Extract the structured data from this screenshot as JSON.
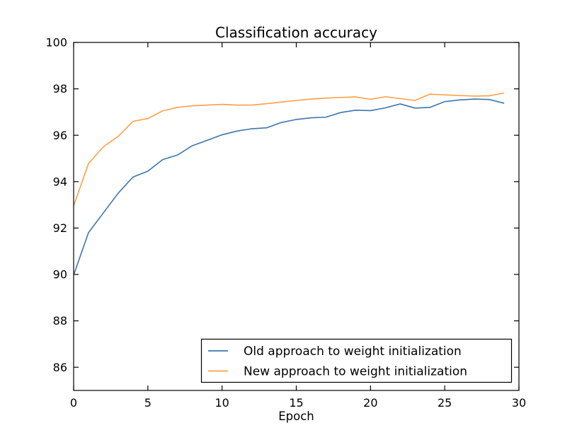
{
  "chart_data": {
    "type": "line",
    "title": "Classification accuracy",
    "xlabel": "Epoch",
    "ylabel": "",
    "xlim": [
      0,
      30
    ],
    "ylim": [
      85,
      100
    ],
    "xticks": [
      0,
      5,
      10,
      15,
      20,
      25,
      30
    ],
    "yticks": [
      86,
      88,
      90,
      92,
      94,
      96,
      98,
      100
    ],
    "grid": false,
    "legend_position": "lower right",
    "axis_color": "#000000",
    "background_color": "#ffffff",
    "x": [
      0,
      1,
      2,
      3,
      4,
      5,
      6,
      7,
      8,
      9,
      10,
      11,
      12,
      13,
      14,
      15,
      16,
      17,
      18,
      19,
      20,
      21,
      22,
      23,
      24,
      25,
      26,
      27,
      28,
      29
    ],
    "series": [
      {
        "name": "Old approach to weight initialization",
        "color": "#3b76b0",
        "values": [
          89.97,
          91.8,
          92.65,
          93.5,
          94.2,
          94.45,
          94.95,
          95.15,
          95.55,
          95.78,
          96.02,
          96.18,
          96.28,
          96.32,
          96.55,
          96.68,
          96.75,
          96.78,
          96.98,
          97.08,
          97.06,
          97.18,
          97.35,
          97.17,
          97.2,
          97.45,
          97.52,
          97.56,
          97.54,
          97.38
        ]
      },
      {
        "name": "New approach to weight initialization",
        "color": "#ff9f45",
        "values": [
          92.95,
          94.78,
          95.5,
          95.95,
          96.6,
          96.72,
          97.05,
          97.2,
          97.27,
          97.3,
          97.33,
          97.3,
          97.3,
          97.36,
          97.43,
          97.5,
          97.56,
          97.6,
          97.63,
          97.65,
          97.55,
          97.66,
          97.58,
          97.5,
          97.77,
          97.74,
          97.71,
          97.69,
          97.7,
          97.82
        ]
      }
    ]
  }
}
